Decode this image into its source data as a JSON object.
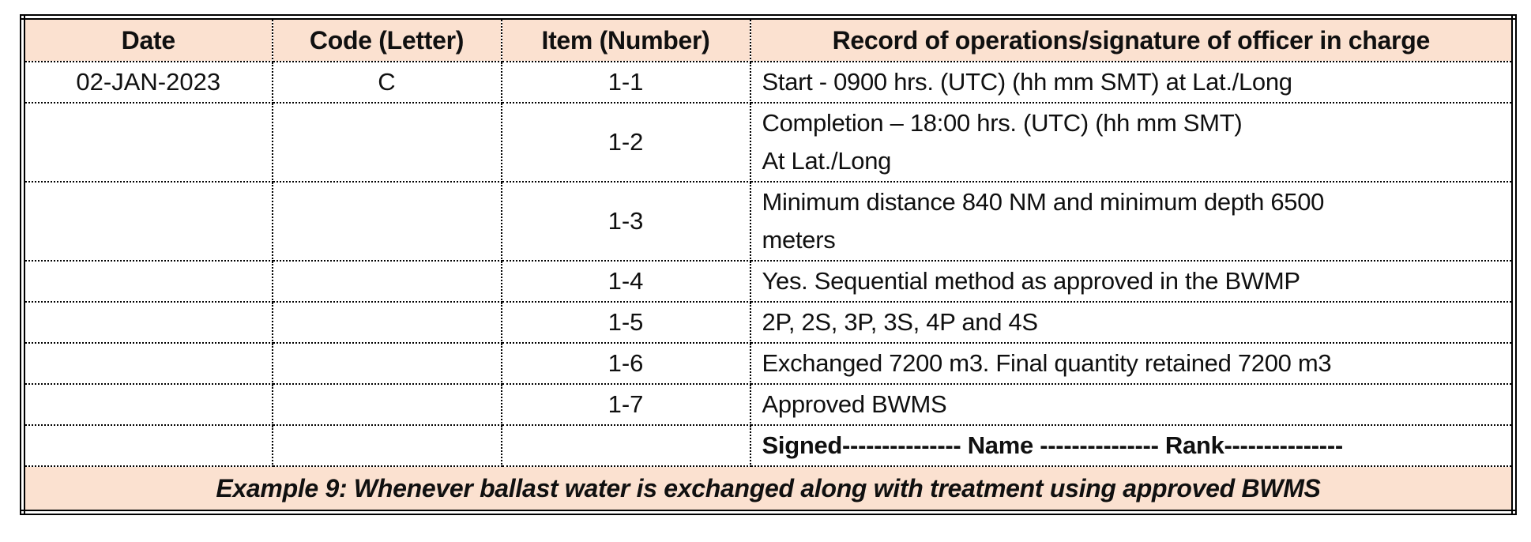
{
  "colors": {
    "band_bg": "#fbe1d0",
    "border": "#000000"
  },
  "table": {
    "headers": [
      "Date",
      "Code (Letter)",
      "Item (Number)",
      "Record of operations/signature of officer in charge"
    ],
    "rows": [
      {
        "date": "02-JAN-2023",
        "code": "C",
        "item": "1-1",
        "record": [
          "Start - 0900 hrs. (UTC) (hh mm SMT) at Lat./Long"
        ],
        "bold": false
      },
      {
        "date": "",
        "code": "",
        "item": "1-2",
        "record": [
          "Completion – 18:00 hrs. (UTC) (hh mm SMT)",
          "At Lat./Long"
        ],
        "bold": false
      },
      {
        "date": "",
        "code": "",
        "item": "1-3",
        "record": [
          "Minimum distance 840 NM and minimum depth 6500",
          "meters"
        ],
        "bold": false
      },
      {
        "date": "",
        "code": "",
        "item": "1-4",
        "record": [
          "Yes. Sequential method as approved in the BWMP"
        ],
        "bold": false
      },
      {
        "date": "",
        "code": "",
        "item": "1-5",
        "record": [
          "2P, 2S, 3P, 3S, 4P and 4S"
        ],
        "bold": false
      },
      {
        "date": "",
        "code": "",
        "item": "1-6",
        "record": [
          "Exchanged 7200 m3. Final quantity retained 7200 m3"
        ],
        "bold": false
      },
      {
        "date": "",
        "code": "",
        "item": "1-7",
        "record": [
          "Approved BWMS"
        ],
        "bold": false
      },
      {
        "date": "",
        "code": "",
        "item": "",
        "record": [
          "Signed--------------- Name --------------- Rank---------------"
        ],
        "bold": true
      }
    ],
    "footer": "Example 9: Whenever ballast water is exchanged along with treatment using approved BWMS"
  }
}
